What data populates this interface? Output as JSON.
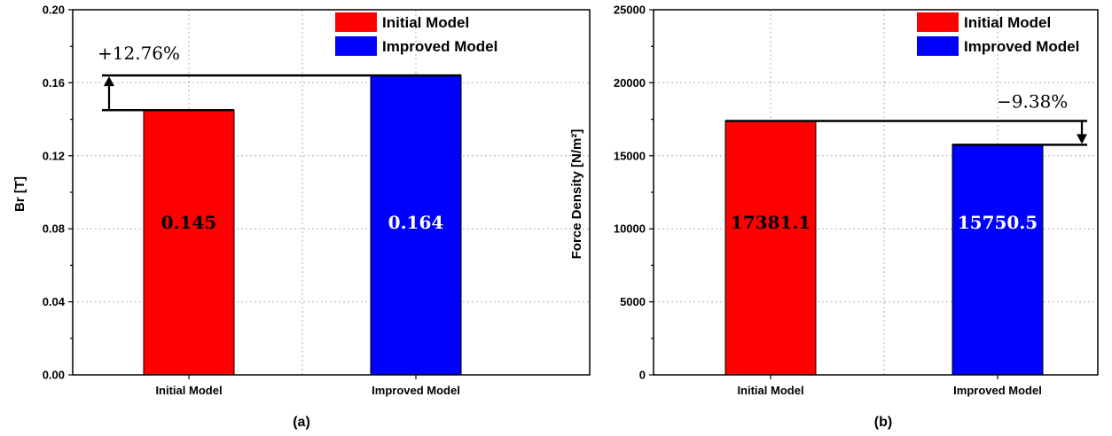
{
  "chart_data": [
    {
      "type": "bar",
      "panel_label": "(a)",
      "categories": [
        "Initial Model",
        "Improved Model"
      ],
      "values": [
        0.145,
        0.164
      ],
      "value_labels": [
        "0.145",
        "0.164"
      ],
      "ylabel": "Br [T]",
      "ylim": [
        0,
        0.2
      ],
      "yticks": [
        "0.00",
        "0.04",
        "0.08",
        "0.12",
        "0.16",
        "0.20"
      ],
      "colors": [
        "#ff0000",
        "#0000ff"
      ],
      "label_colors": [
        "#000000",
        "#ffffff"
      ],
      "legend": [
        "Initial Model",
        "Improved Model"
      ],
      "legend_position": "top-right",
      "grid": true,
      "annotation": "+12.76%"
    },
    {
      "type": "bar",
      "panel_label": "(b)",
      "categories": [
        "Initial Model",
        "Improved Model"
      ],
      "values": [
        17381.1,
        15750.5
      ],
      "value_labels": [
        "17381.1",
        "15750.5"
      ],
      "ylabel": "Force Density [N/m²]",
      "ylim": [
        0,
        25000
      ],
      "yticks": [
        "0",
        "5000",
        "10000",
        "15000",
        "20000",
        "25000"
      ],
      "colors": [
        "#ff0000",
        "#0000ff"
      ],
      "label_colors": [
        "#000000",
        "#ffffff"
      ],
      "legend": [
        "Initial Model",
        "Improved Model"
      ],
      "legend_position": "top-right",
      "grid": true,
      "annotation": "−9.38%"
    }
  ]
}
